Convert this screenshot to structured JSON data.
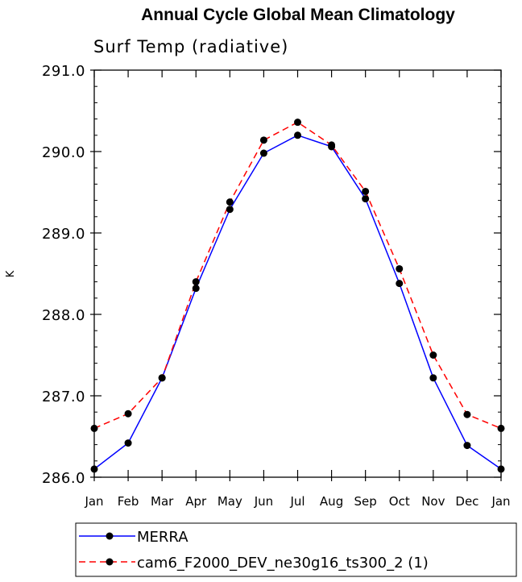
{
  "chart_data": {
    "type": "line",
    "title": "Annual Cycle Global Mean Climatology",
    "subtitle": "Surf Temp (radiative)",
    "xlabel": "",
    "ylabel": "K",
    "categories": [
      "Jan",
      "Feb",
      "Mar",
      "Apr",
      "May",
      "Jun",
      "Jul",
      "Aug",
      "Sep",
      "Oct",
      "Nov",
      "Dec",
      "Jan"
    ],
    "ylim": [
      286.0,
      291.0
    ],
    "yticks": [
      "286.0",
      "287.0",
      "288.0",
      "289.0",
      "290.0",
      "291.0"
    ],
    "legend_position": "bottom",
    "grid": false,
    "series": [
      {
        "name": "MERRA",
        "color": "#0000ff",
        "dash": "solid",
        "values": [
          286.1,
          286.42,
          287.22,
          288.32,
          289.29,
          289.98,
          290.2,
          290.06,
          289.42,
          288.38,
          287.22,
          286.39,
          286.1
        ]
      },
      {
        "name": "cam6_F2000_DEV_ne30g16_ts300_2 (1)",
        "color": "#ff0000",
        "dash": "dashed",
        "values": [
          286.6,
          286.78,
          287.22,
          288.4,
          289.38,
          290.14,
          290.36,
          290.08,
          289.51,
          288.56,
          287.5,
          286.77,
          286.6
        ]
      }
    ]
  }
}
